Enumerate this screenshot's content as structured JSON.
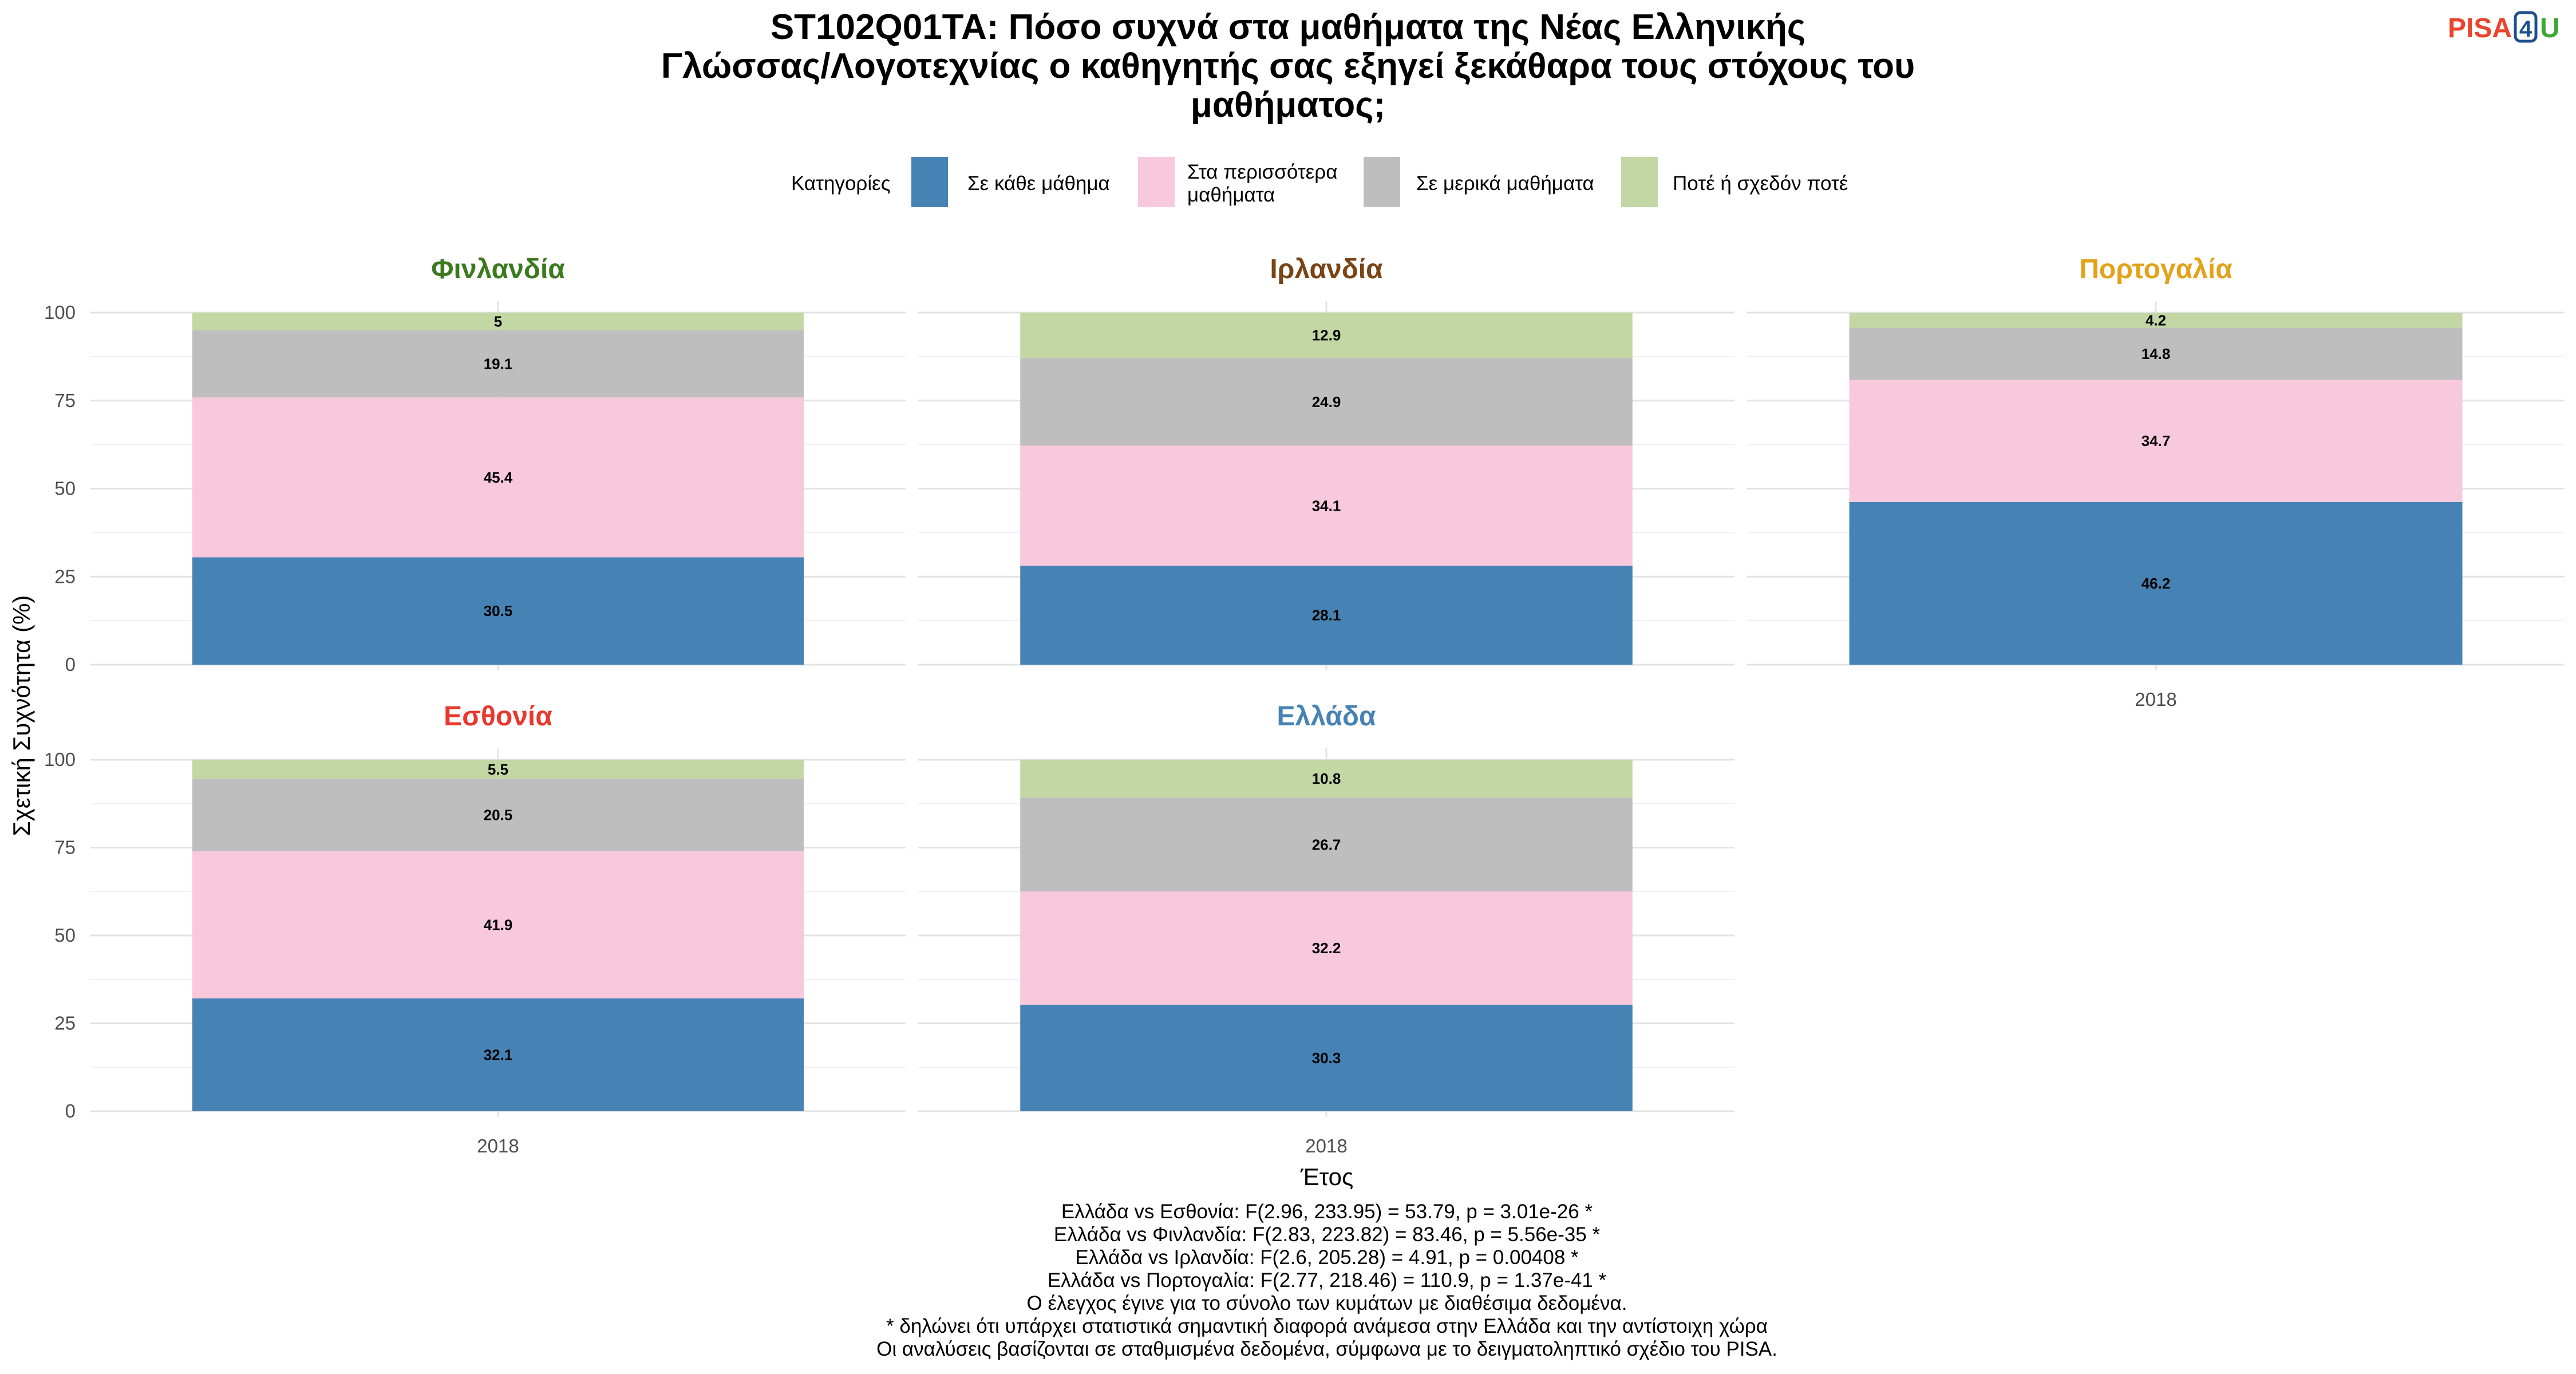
{
  "title_lines": [
    "ST102Q01TA: Πόσο συχνά στα μαθήματα της Νέας Ελληνικής",
    "Γλώσσας/Λογοτεχνίας ο καθηγητής σας εξηγεί ξεκάθαρα τους στόχους του",
    "μαθήματος;"
  ],
  "logo": {
    "part1": "PISA",
    "part2": "4",
    "part3": "U"
  },
  "legend": {
    "title": "Κατηγορίες",
    "items": [
      {
        "label_lines": [
          "Σε κάθε μάθημα"
        ],
        "color": "#4682B4"
      },
      {
        "label_lines": [
          "Στα περισσότερα",
          "μαθήματα"
        ],
        "color": "#F8C8DC"
      },
      {
        "label_lines": [
          "Σε μερικά μαθήματα"
        ],
        "color": "#BEBEBE"
      },
      {
        "label_lines": [
          "Ποτέ ή σχεδόν ποτέ"
        ],
        "color": "#C3D7A4"
      }
    ]
  },
  "chart_data": {
    "type": "bar",
    "stacked": true,
    "xlabel": "Έτος",
    "ylabel": "Σχετική Συχνότητα (%)",
    "ylim": [
      0,
      100
    ],
    "yticks": [
      0,
      25,
      50,
      75,
      100
    ],
    "categories": [
      "2018"
    ],
    "series_names": [
      "Σε κάθε μάθημα",
      "Στα περισσότερα μαθήματα",
      "Σε μερικά μαθήματα",
      "Ποτέ ή σχεδόν ποτέ"
    ],
    "facets": [
      {
        "name": "Φινλανδία",
        "color": "#3B7A1F",
        "year": "2018",
        "values": [
          30.5,
          45.4,
          19.1,
          5
        ]
      },
      {
        "name": "Ιρλανδία",
        "color": "#7A4415",
        "year": "2018",
        "values": [
          28.1,
          34.1,
          24.9,
          12.9
        ]
      },
      {
        "name": "Πορτογαλία",
        "color": "#E3A21A",
        "year": "2018",
        "values": [
          46.2,
          34.7,
          14.8,
          4.2
        ]
      },
      {
        "name": "Εσθονία",
        "color": "#E8382F",
        "year": "2018",
        "values": [
          32.1,
          41.9,
          20.5,
          5.5
        ]
      },
      {
        "name": "Ελλάδα",
        "color": "#4682B4",
        "year": "2018",
        "values": [
          30.3,
          32.2,
          26.7,
          10.8
        ]
      }
    ]
  },
  "footnotes": [
    "Ελλάδα vs Εσθονία: F(2.96, 233.95) = 53.79, p = 3.01e-26 *",
    "Ελλάδα vs Φινλανδία: F(2.83, 223.82) = 83.46, p = 5.56e-35 *",
    "Ελλάδα vs Ιρλανδία: F(2.6, 205.28) = 4.91, p = 0.00408 *",
    "Ελλάδα vs Πορτογαλία: F(2.77, 218.46) = 110.9, p = 1.37e-41 *",
    "Ο έλεγχος έγινε για το σύνολο των κυμάτων με διαθέσιμα δεδομένα.",
    "* δηλώνει ότι υπάρχει στατιστικά σημαντική διαφορά ανάμεσα στην Ελλάδα και την αντίστοιχη χώρα",
    "Οι αναλύσεις βασίζονται σε σταθμισμένα δεδομένα, σύμφωνα με το δειγματοληπτικό σχέδιο του PISA."
  ]
}
